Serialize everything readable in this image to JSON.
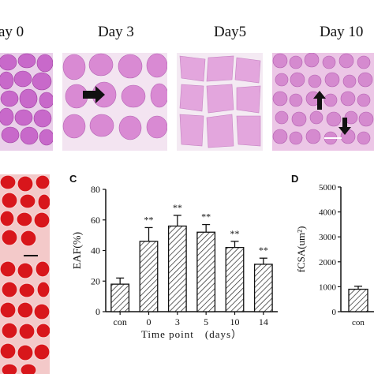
{
  "top_row": {
    "labels": [
      "ay 0",
      "Day 3",
      "Day5",
      "Day 10"
    ]
  },
  "panels": {
    "c_label": "C",
    "d_label": "D"
  },
  "colors": {
    "he_pink": "#d98ad3",
    "he_fiber": "#c766c9",
    "he_bg": "#f2e3f0",
    "masson_red": "#d8161b",
    "masson_light": "#f0c4c4",
    "bar_fill": "#ffffff",
    "hatch": "#222222"
  },
  "chart_data": [
    {
      "type": "bar",
      "categories": [
        "con",
        "0",
        "3",
        "5",
        "10",
        "14"
      ],
      "values": [
        18,
        46,
        56,
        52,
        42,
        31
      ],
      "errors": [
        4,
        9,
        7,
        5,
        4,
        4
      ],
      "significance": [
        "",
        "**",
        "**",
        "**",
        "**",
        "**"
      ],
      "title": "",
      "xlabel": "Time point　(days）",
      "ylabel": "EAF(%)",
      "ylim": [
        0,
        80
      ],
      "yticks": [
        0,
        20,
        40,
        60,
        80
      ],
      "grid": false
    },
    {
      "type": "bar",
      "categories": [
        "con"
      ],
      "values": [
        900
      ],
      "errors": [
        120
      ],
      "title": "",
      "xlabel": "",
      "ylabel": "fCSA(um²)",
      "ylim": [
        0,
        5000
      ],
      "yticks": [
        0,
        1000,
        2000,
        3000,
        4000,
        5000
      ],
      "grid": false
    }
  ]
}
